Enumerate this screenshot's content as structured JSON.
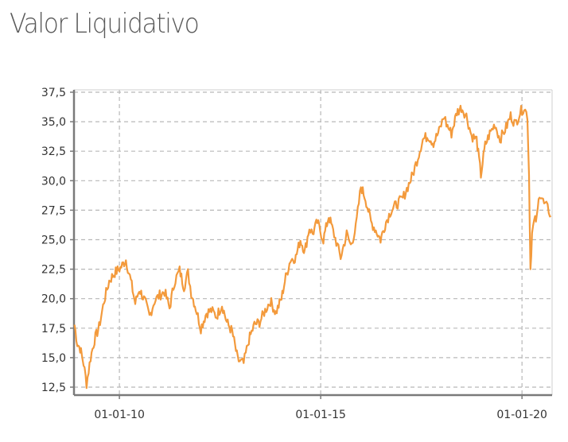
{
  "title": "Valor Liquidativo",
  "chart_data": {
    "type": "line",
    "title": "",
    "xlabel": "",
    "ylabel": "",
    "ylim": [
      12.5,
      37.5
    ],
    "xlim": [
      "2008-11-15",
      "2020-09-30"
    ],
    "y_ticks": [
      "37,5",
      "35,0",
      "32,5",
      "30,0",
      "27,5",
      "25,0",
      "22,5",
      "20,0",
      "17,5",
      "15,0",
      "12,5"
    ],
    "y_tick_values": [
      37.5,
      35.0,
      32.5,
      30.0,
      27.5,
      25.0,
      22.5,
      20.0,
      17.5,
      15.0,
      12.5
    ],
    "x_ticks": [
      "01-01-10",
      "01-01-15",
      "01-01-20"
    ],
    "x_tick_dates": [
      "2010-01-01",
      "2015-01-01",
      "2020-01-01"
    ],
    "grid": true,
    "line_color": "#f39a3c",
    "grid_color": "#b8b8b8",
    "axis_color": "#7a7a7a",
    "series": [
      {
        "name": "",
        "x": [
          "2008-11-20",
          "2008-12-15",
          "2009-01-10",
          "2009-02-10",
          "2009-03-09",
          "2009-04-15",
          "2009-05-20",
          "2009-07-01",
          "2009-08-15",
          "2009-10-01",
          "2009-11-20",
          "2010-01-10",
          "2010-03-01",
          "2010-04-15",
          "2010-05-25",
          "2010-07-01",
          "2010-08-20",
          "2010-10-01",
          "2010-11-15",
          "2011-01-01",
          "2011-02-15",
          "2011-04-01",
          "2011-05-15",
          "2011-07-01",
          "2011-08-10",
          "2011-09-15",
          "2011-10-15",
          "2011-11-25",
          "2012-01-10",
          "2012-03-01",
          "2012-04-15",
          "2012-06-01",
          "2012-07-20",
          "2012-09-01",
          "2012-10-20",
          "2012-12-10",
          "2013-02-01",
          "2013-03-20",
          "2013-05-10",
          "2013-06-25",
          "2013-08-15",
          "2013-10-01",
          "2013-11-20",
          "2014-01-10",
          "2014-02-10",
          "2014-04-01",
          "2014-05-20",
          "2014-07-01",
          "2014-08-10",
          "2014-09-20",
          "2014-10-20",
          "2014-12-01",
          "2015-01-25",
          "2015-03-15",
          "2015-04-15",
          "2015-06-01",
          "2015-07-01",
          "2015-08-25",
          "2015-10-01",
          "2015-11-15",
          "2016-01-01",
          "2016-02-11",
          "2016-04-01",
          "2016-05-15",
          "2016-06-27",
          "2016-08-15",
          "2016-10-01",
          "2016-11-20",
          "2017-01-15",
          "2017-03-01",
          "2017-04-15",
          "2017-06-01",
          "2017-07-15",
          "2017-09-01",
          "2017-10-20",
          "2017-12-10",
          "2018-01-25",
          "2018-02-15",
          "2018-04-01",
          "2018-05-20",
          "2018-07-01",
          "2018-08-15",
          "2018-10-01",
          "2018-11-15",
          "2018-12-24",
          "2019-02-01",
          "2019-03-15",
          "2019-05-01",
          "2019-06-15",
          "2019-08-10",
          "2019-09-20",
          "2019-11-01",
          "2019-12-15",
          "2020-01-20",
          "2020-02-19",
          "2020-03-05",
          "2020-03-18",
          "2020-04-01",
          "2020-04-20",
          "2020-05-15",
          "2020-06-08",
          "2020-06-30",
          "2020-07-20",
          "2020-08-10",
          "2020-08-31",
          "2020-09-20"
        ],
        "y": [
          17.8,
          16.2,
          15.8,
          14.5,
          12.8,
          15.0,
          16.5,
          17.6,
          19.8,
          21.5,
          22.2,
          22.6,
          23.3,
          21.5,
          19.6,
          20.8,
          19.8,
          18.5,
          19.8,
          20.3,
          20.6,
          19.2,
          21.4,
          22.4,
          21.0,
          22.2,
          20.5,
          19.2,
          17.5,
          18.8,
          19.0,
          18.5,
          19.5,
          18.0,
          17.2,
          14.8,
          14.5,
          16.5,
          17.8,
          18.0,
          19.0,
          19.8,
          18.8,
          20.0,
          21.5,
          23.3,
          23.5,
          25.0,
          24.0,
          26.0,
          25.5,
          26.5,
          25.0,
          27.0,
          26.0,
          24.5,
          23.5,
          25.5,
          24.5,
          26.0,
          29.5,
          28.5,
          26.5,
          25.8,
          25.0,
          26.5,
          27.5,
          28.0,
          28.5,
          29.5,
          30.5,
          32.0,
          33.5,
          33.8,
          33.2,
          34.2,
          35.5,
          34.8,
          34.0,
          35.8,
          36.2,
          35.5,
          33.8,
          33.5,
          30.5,
          33.0,
          34.0,
          34.8,
          33.5,
          34.5,
          35.5,
          34.8,
          35.8,
          36.2,
          35.5,
          30.5,
          22.5,
          25.5,
          26.5,
          26.8,
          29.0,
          28.5,
          28.0,
          27.8,
          27.5,
          27.0
        ]
      }
    ]
  }
}
